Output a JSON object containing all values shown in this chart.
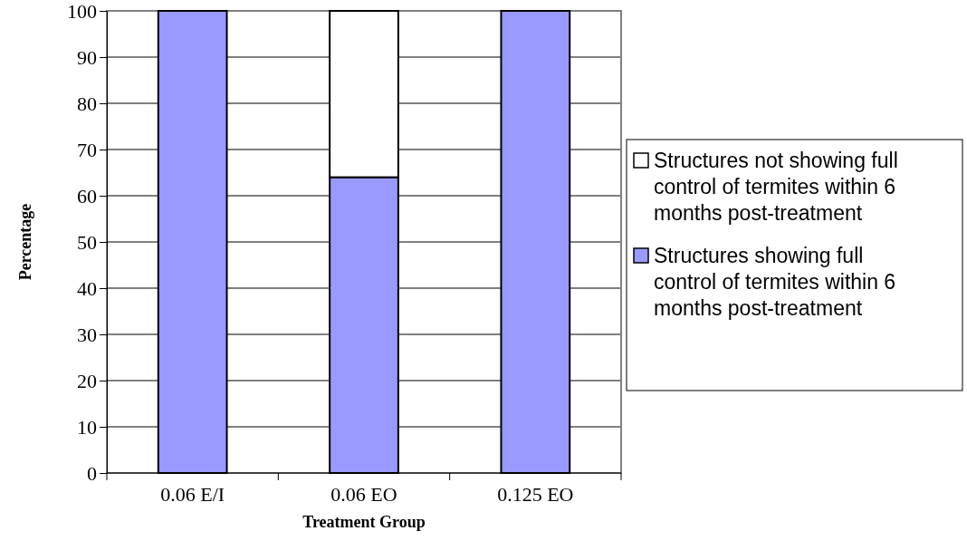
{
  "chart_data": {
    "type": "bar",
    "stacked": true,
    "xlabel": "Treatment Group",
    "ylabel": "Percentage",
    "categories": [
      "0.06 E/I",
      "0.06 EO",
      "0.125 EO"
    ],
    "series": [
      {
        "name": "Structures showing full control of termites within 6 months post-treatment",
        "color": "#9999ff",
        "values": [
          100,
          64,
          100
        ]
      },
      {
        "name": "Structures not showing full control of termites within 6 months post-treatment",
        "color": "#ffffff",
        "values": [
          0,
          36,
          0
        ]
      }
    ],
    "ylim": [
      0,
      100
    ],
    "yticks": [
      0,
      10,
      20,
      30,
      40,
      50,
      60,
      70,
      80,
      90,
      100
    ],
    "grid": "y",
    "legend": "right"
  }
}
